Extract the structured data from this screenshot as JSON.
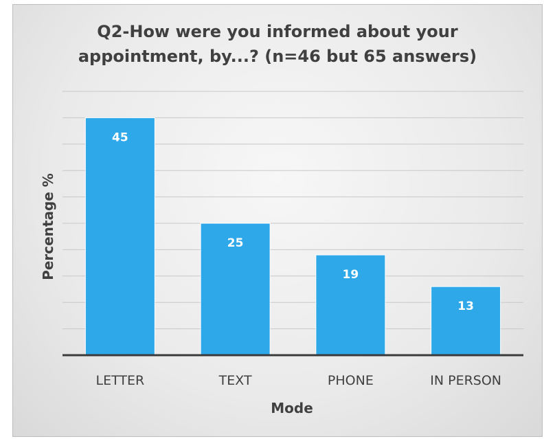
{
  "chart_data": {
    "type": "bar",
    "title": "Q2-How were you informed about your appointment, by...? (n=46 but 65 answers)",
    "title_lines": [
      "Q2-How were you informed about your",
      "appointment, by...? (n=46 but 65 answers)"
    ],
    "xlabel": "Mode",
    "ylabel": "Percentage %",
    "categories": [
      "LETTER",
      "TEXT",
      "PHONE",
      "IN PERSON"
    ],
    "values": [
      45,
      25,
      19,
      13
    ],
    "ylim": [
      0,
      50
    ],
    "grid": true,
    "legend": "none",
    "bar_color": "#2fa8ea",
    "label_color": "#ffffff"
  }
}
